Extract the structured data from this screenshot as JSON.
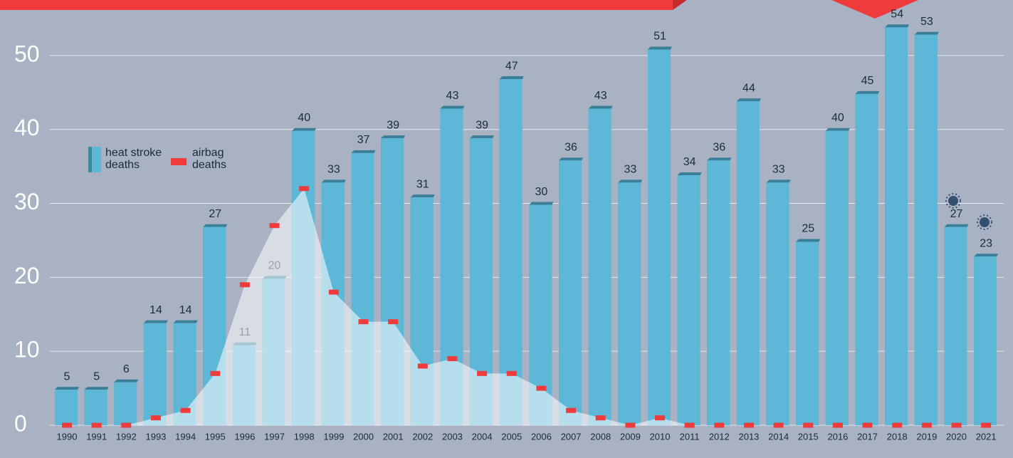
{
  "chart_data": {
    "type": "bar",
    "categories": [
      "1990",
      "1991",
      "1992",
      "1993",
      "1994",
      "1995",
      "1996",
      "1997",
      "1998",
      "1999",
      "2000",
      "2001",
      "2002",
      "2003",
      "2004",
      "2005",
      "2006",
      "2007",
      "2008",
      "2009",
      "2010",
      "2011",
      "2012",
      "2013",
      "2014",
      "2015",
      "2016",
      "2017",
      "2018",
      "2019",
      "2020",
      "2021"
    ],
    "series": [
      {
        "name": "heat stroke deaths",
        "color": "#5db7d7",
        "values": [
          5,
          5,
          6,
          14,
          14,
          27,
          11,
          20,
          40,
          33,
          37,
          39,
          31,
          43,
          39,
          47,
          30,
          36,
          43,
          33,
          51,
          34,
          36,
          44,
          33,
          25,
          40,
          45,
          54,
          53,
          27,
          23
        ]
      },
      {
        "name": "airbag deaths",
        "color": "#ef3b3b",
        "values": [
          0,
          0,
          0,
          1,
          2,
          7,
          19,
          27,
          32,
          18,
          14,
          14,
          8,
          9,
          7,
          7,
          5,
          2,
          1,
          0,
          1,
          0,
          0,
          0,
          0,
          0,
          0,
          0,
          0,
          0,
          0,
          0
        ]
      }
    ],
    "ylim": [
      0,
      55
    ],
    "yticks": [
      0,
      10,
      20,
      30,
      40,
      50
    ],
    "grid": true
  }
}
